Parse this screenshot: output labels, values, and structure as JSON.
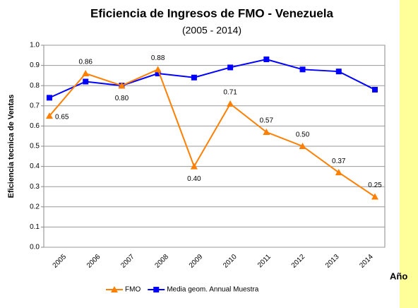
{
  "chart_data": {
    "type": "line",
    "title": "Eficiencia de Ingresos de FMO - Venezuela",
    "subtitle": "(2005 - 2014)",
    "y_label": "Eficiencia tecnica de Ventas",
    "x_label": "Año",
    "categories": [
      "2005",
      "2006",
      "2007",
      "2008",
      "2009",
      "2010",
      "2011",
      "2012",
      "2013",
      "2014"
    ],
    "series": [
      {
        "name": "FMO",
        "color": "#ff7f00",
        "marker": "triangle",
        "values": [
          0.65,
          0.86,
          0.8,
          0.88,
          0.4,
          0.71,
          0.57,
          0.5,
          0.37,
          0.25
        ],
        "value_labels": [
          "0.65",
          "0.86",
          "0.80",
          "0.88",
          "0.40",
          "0.71",
          "0.57",
          "0.50",
          "0.37",
          "0.25"
        ]
      },
      {
        "name": "Media geom. Annual Muestra",
        "color": "#0000ff",
        "marker": "square",
        "values": [
          0.74,
          0.82,
          0.8,
          0.86,
          0.84,
          0.89,
          0.93,
          0.88,
          0.87,
          0.78
        ]
      }
    ],
    "ylim": [
      0,
      1
    ],
    "yticks": [
      {
        "value": 0,
        "label": "0.0"
      },
      0.1,
      0.2,
      0.3,
      0.4,
      0.5,
      0.6,
      0.7,
      0.8,
      0.9,
      {
        "value": 1,
        "label": "1.0"
      }
    ],
    "grid": true,
    "legend": "bottom"
  }
}
